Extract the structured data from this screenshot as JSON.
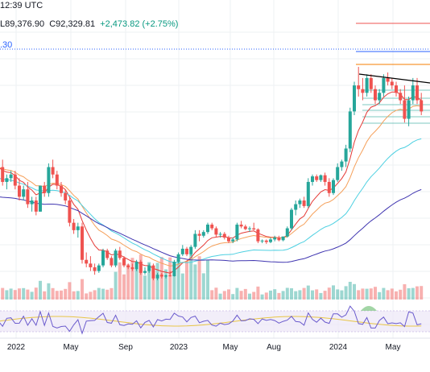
{
  "header": {
    "time_fragment": "12:39 UTC",
    "low_label": "L",
    "low_value": "89,376.90",
    "close_label": "C",
    "close_value": "92,329.81",
    "change": "+2,473.82 (+2.75%)",
    "indicator_value": ".30"
  },
  "colors": {
    "up": "#26a69a",
    "down": "#ef5350",
    "ema_fast": "#e53935",
    "ema_mid": "#f5a05a",
    "ema_slow": "#4dd0e1",
    "ema_long": "#3f35b0",
    "rsi": "#6a5acd",
    "rsi_signal": "#e8c547",
    "rsi_band": "#ede7f6",
    "grid": "#eef0f3",
    "trendline": "#000000",
    "level_red": "#ef5350",
    "level_blue": "#2962ff",
    "level_orange": "#f57c00"
  },
  "chart_data": {
    "type": "candlestick",
    "interval": "weekly",
    "xaxis_labels": [
      "2022",
      "May",
      "Sep",
      "2023",
      "May",
      "Aug",
      "2024",
      "May"
    ],
    "annotations": {
      "trendline": "descending resistance",
      "horizontal_levels": 4
    },
    "candles_ohlc": [
      [
        47,
        50,
        45,
        46
      ],
      [
        46,
        48,
        41,
        42
      ],
      [
        42,
        44,
        40,
        43
      ],
      [
        43,
        45,
        42,
        44
      ],
      [
        44,
        45,
        40,
        41
      ],
      [
        41,
        43,
        37,
        38
      ],
      [
        38,
        41,
        37,
        40
      ],
      [
        40,
        42,
        35,
        36
      ],
      [
        36,
        38,
        34,
        37
      ],
      [
        37,
        38,
        33,
        34
      ],
      [
        34,
        41,
        34,
        41
      ],
      [
        41,
        42,
        38,
        39
      ],
      [
        39,
        47,
        38,
        46
      ],
      [
        46,
        48,
        43,
        44
      ],
      [
        44,
        45,
        40,
        41
      ],
      [
        41,
        42,
        38,
        39
      ],
      [
        39,
        40,
        36,
        37
      ],
      [
        37,
        38,
        30,
        31
      ],
      [
        31,
        32,
        28,
        29
      ],
      [
        29,
        31,
        27,
        30
      ],
      [
        30,
        31,
        20,
        21
      ],
      [
        21,
        23,
        19,
        20
      ],
      [
        20,
        22,
        18,
        19
      ],
      [
        19,
        20,
        17,
        18
      ],
      [
        18,
        20,
        17.5,
        19.5
      ],
      [
        19.5,
        24,
        19,
        23.5
      ],
      [
        23.5,
        24,
        21,
        21.5
      ],
      [
        21.5,
        22,
        19,
        19.5
      ],
      [
        19.5,
        24,
        19,
        23.5
      ],
      [
        23.5,
        24.5,
        21,
        21.5
      ],
      [
        21.5,
        22,
        19,
        19.5
      ],
      [
        19.5,
        20,
        18.5,
        19
      ],
      [
        19,
        20,
        18,
        18.5
      ],
      [
        18.5,
        21,
        18,
        20.5
      ],
      [
        20.5,
        21,
        17,
        17.5
      ],
      [
        17.5,
        19,
        17,
        18
      ],
      [
        18,
        20,
        17.5,
        19.5
      ],
      [
        19.5,
        20,
        15.5,
        16
      ],
      [
        16,
        17.5,
        15.5,
        17
      ],
      [
        17,
        17.5,
        16,
        16.5
      ],
      [
        16.5,
        17,
        16,
        16.8
      ],
      [
        16.8,
        18,
        16.5,
        16.6
      ],
      [
        16.6,
        21,
        16.5,
        20.5
      ],
      [
        20.5,
        23,
        20,
        22.5
      ],
      [
        22.5,
        25,
        22,
        24
      ],
      [
        24,
        24.5,
        22,
        22.5
      ],
      [
        22.5,
        25,
        22,
        24.5
      ],
      [
        24.5,
        29,
        24,
        28
      ],
      [
        28,
        29,
        26,
        27.5
      ],
      [
        27.5,
        29,
        27,
        28.5
      ],
      [
        28.5,
        31,
        28,
        30.5
      ],
      [
        30.5,
        31,
        29,
        29.5
      ],
      [
        29.5,
        30,
        27,
        27.8
      ],
      [
        27.8,
        28.5,
        27,
        28
      ],
      [
        28,
        28.5,
        26.5,
        27
      ],
      [
        27,
        27.5,
        25.5,
        26
      ],
      [
        26,
        27,
        25.5,
        26.5
      ],
      [
        26.5,
        31,
        26,
        30.5
      ],
      [
        30.5,
        31.5,
        29.5,
        30
      ],
      [
        30,
        30.5,
        29,
        29.3
      ],
      [
        29.3,
        30,
        28.5,
        29.5
      ],
      [
        29.5,
        31,
        29,
        29.2
      ],
      [
        29.2,
        29.5,
        25.5,
        26
      ],
      [
        26,
        26.5,
        25.5,
        26.2
      ],
      [
        26.2,
        26.5,
        25.3,
        25.8
      ],
      [
        25.8,
        27,
        25.5,
        26.5
      ],
      [
        26.5,
        27.5,
        26,
        27
      ],
      [
        27,
        27.5,
        26,
        26.3
      ],
      [
        26.3,
        27,
        26,
        27.3
      ],
      [
        27.3,
        30,
        27,
        29.5
      ],
      [
        29.5,
        35,
        29,
        34.5
      ],
      [
        34.5,
        37,
        33,
        36
      ],
      [
        36,
        37.5,
        35,
        37
      ],
      [
        37,
        38,
        35,
        35.5
      ],
      [
        35.5,
        43,
        35,
        42
      ],
      [
        42,
        44,
        41,
        43.5
      ],
      [
        43.5,
        44,
        42,
        42.5
      ],
      [
        42.5,
        44,
        42,
        43.8
      ],
      [
        43.8,
        44.5,
        41,
        42
      ],
      [
        42,
        43,
        38,
        39
      ],
      [
        39,
        43,
        38.5,
        42.5
      ],
      [
        42.5,
        47,
        42,
        46
      ],
      [
        46,
        48,
        45,
        47.5
      ],
      [
        47.5,
        52,
        46,
        51
      ],
      [
        51,
        62,
        50,
        61
      ],
      [
        61,
        69,
        60,
        68
      ],
      [
        68,
        73,
        65,
        67
      ],
      [
        67,
        70,
        64,
        66
      ],
      [
        66,
        71,
        65,
        70
      ],
      [
        70,
        71,
        66,
        67
      ],
      [
        67,
        68,
        63,
        64
      ],
      [
        64,
        67,
        63,
        66
      ],
      [
        66,
        71,
        65,
        70
      ],
      [
        70,
        71.5,
        68,
        69
      ],
      [
        69,
        70,
        67,
        68
      ],
      [
        68,
        69,
        65,
        66
      ],
      [
        66,
        67,
        63,
        64
      ],
      [
        64,
        68,
        58,
        59
      ],
      [
        59,
        65,
        57,
        64
      ],
      [
        64,
        70,
        63,
        68
      ],
      [
        68,
        70,
        63,
        64
      ],
      [
        64,
        66,
        60,
        61
      ]
    ],
    "volume_pattern_note": "volume histogram shown below price, colored by candle direction",
    "rsi_series_note": "RSI oscillator panel at bottom with signal line and shaded band"
  }
}
